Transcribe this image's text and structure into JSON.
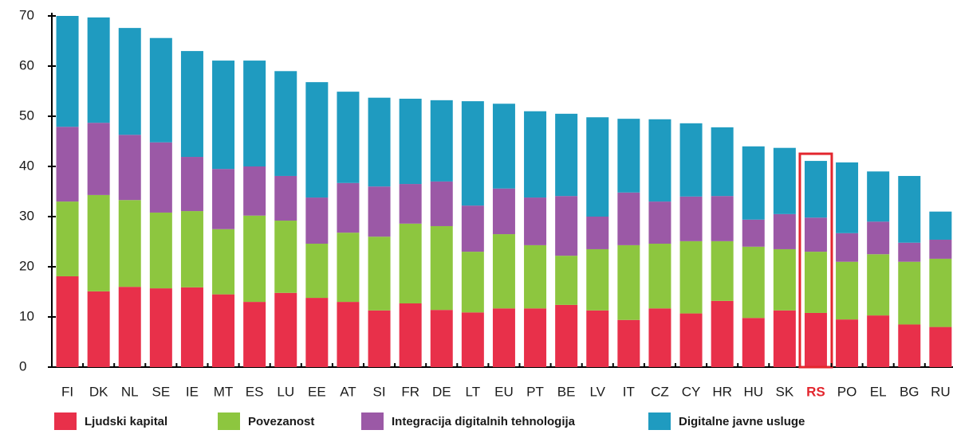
{
  "chart_data": {
    "type": "stacked_bar",
    "categories": [
      "FI",
      "DK",
      "NL",
      "SE",
      "IE",
      "MT",
      "ES",
      "LU",
      "EE",
      "AT",
      "SI",
      "FR",
      "DE",
      "LT",
      "EU",
      "PT",
      "BE",
      "LV",
      "IT",
      "CZ",
      "CY",
      "HR",
      "HU",
      "SK",
      "RS",
      "PO",
      "EL",
      "BG",
      "RU"
    ],
    "series": [
      {
        "name": "Ljudski kapital",
        "color": "#e8304a",
        "values": [
          18.1,
          15.1,
          16.0,
          15.7,
          15.9,
          14.5,
          13.0,
          14.8,
          13.8,
          13.0,
          11.3,
          12.7,
          11.4,
          10.9,
          11.7,
          11.7,
          12.4,
          11.3,
          9.4,
          11.7,
          10.7,
          13.2,
          9.8,
          11.3,
          10.8,
          9.5,
          10.3,
          8.5,
          8.0
        ]
      },
      {
        "name": "Povezanost",
        "color": "#8dc63f",
        "values": [
          14.9,
          19.2,
          17.3,
          15.1,
          15.2,
          13.0,
          17.2,
          14.4,
          10.8,
          13.8,
          14.7,
          15.9,
          16.7,
          12.1,
          14.8,
          12.6,
          9.8,
          12.2,
          14.9,
          12.9,
          14.4,
          11.9,
          14.2,
          12.2,
          12.2,
          11.5,
          12.2,
          12.5,
          13.6
        ]
      },
      {
        "name": "Integracija digitalnih tehnologija",
        "color": "#9b59a6",
        "values": [
          14.9,
          14.4,
          13.0,
          14.0,
          10.8,
          12.0,
          9.8,
          8.9,
          9.2,
          9.9,
          10.0,
          7.9,
          8.9,
          9.2,
          9.1,
          9.5,
          11.9,
          6.5,
          10.5,
          8.4,
          8.9,
          9.0,
          5.4,
          7.0,
          6.8,
          5.7,
          6.5,
          3.8,
          3.8
        ]
      },
      {
        "name": "Digitalne javne usluge",
        "color": "#1f9bc0",
        "values": [
          22.1,
          21.0,
          21.3,
          20.8,
          21.1,
          21.6,
          21.1,
          20.9,
          23.0,
          18.2,
          17.7,
          17.0,
          16.2,
          20.8,
          16.9,
          17.2,
          16.4,
          19.8,
          14.7,
          16.4,
          14.6,
          13.7,
          14.6,
          13.2,
          11.3,
          14.1,
          10.0,
          13.3,
          5.6
        ]
      }
    ],
    "ylim": [
      0,
      70
    ],
    "yticks": [
      0,
      10,
      20,
      30,
      40,
      50,
      60,
      70
    ],
    "highlight": {
      "category_index": 24,
      "color": "#e3262e"
    }
  }
}
